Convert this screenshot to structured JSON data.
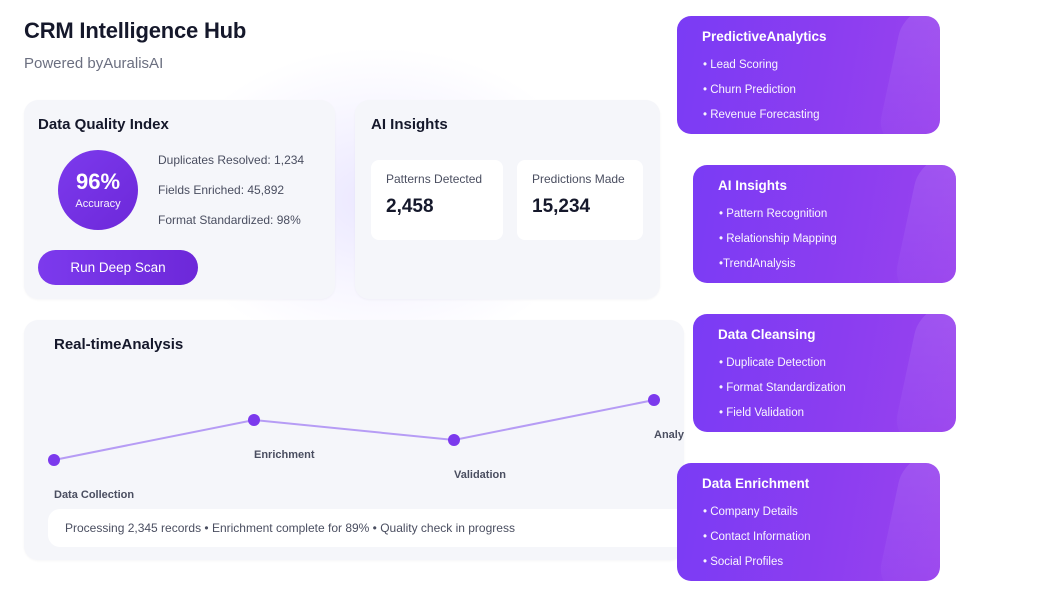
{
  "header": {
    "title": "CRM Intelligence Hub",
    "subtitle": "Powered byAuralisAI"
  },
  "data_quality": {
    "title": "Data Quality Index",
    "percent": "96%",
    "percent_label": "Accuracy",
    "stats": [
      "Duplicates Resolved: 1,234",
      "Fields Enriched: 45,892",
      "Format Standardized: 98%"
    ],
    "button_label": "Run Deep Scan"
  },
  "ai_insights_card": {
    "title": "AI Insights",
    "metrics": [
      {
        "label": "Patterns Detected",
        "value": "2,458"
      },
      {
        "label": "Predictions Made",
        "value": "15,234"
      }
    ]
  },
  "realtime": {
    "title": "Real-timeAnalysis",
    "stages": [
      "Data Collection",
      "Enrichment",
      "Validation",
      "Analysis"
    ],
    "status": "Processing 2,345 records • Enrichment complete for 89% • Quality check in progress"
  },
  "features": [
    {
      "title": "PredictiveAnalytics",
      "items": [
        "• Lead Scoring",
        "• Churn Prediction",
        "• Revenue Forecasting"
      ]
    },
    {
      "title": "AI Insights",
      "items": [
        "• Pattern Recognition",
        "• Relationship Mapping",
        "•TrendAnalysis"
      ]
    },
    {
      "title": "Data Cleansing",
      "items": [
        "• Duplicate Detection",
        "• Format Standardization",
        "• Field Validation"
      ]
    },
    {
      "title": "Data Enrichment",
      "items": [
        "• Company Details",
        "• Contact Information",
        "• Social Profiles"
      ]
    }
  ],
  "colors": {
    "accent": "#7c3aed",
    "line": "#b69cf5",
    "card_bg": "#f5f6fa"
  }
}
